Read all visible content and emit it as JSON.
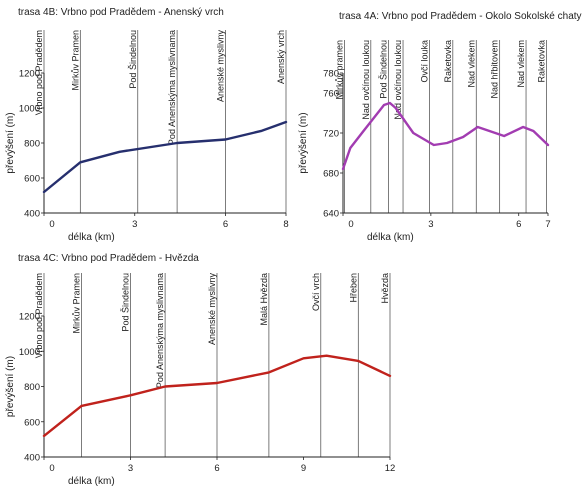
{
  "chart_data": [
    {
      "type": "line",
      "title": "trasa 4B: Vrbno pod Pradědem - Anenský vrch",
      "xlabel": "délka (km)",
      "ylabel": "převýšení (m)",
      "xlim": [
        0,
        8
      ],
      "ylim": [
        400,
        1200
      ],
      "xticks": [
        0,
        3,
        6,
        8
      ],
      "yticks": [
        400,
        600,
        800,
        1000,
        1200
      ],
      "color": "#262f6e",
      "waypoints": [
        {
          "x": 0,
          "label": "Vrbno pod Pradědem"
        },
        {
          "x": 1.2,
          "label": "Mirkův Pramen"
        },
        {
          "x": 3.1,
          "label": "Pod Šindelnou"
        },
        {
          "x": 4.4,
          "label": "Pod Anenskýma myslivnama"
        },
        {
          "x": 6.0,
          "label": "Anenské myslivny"
        },
        {
          "x": 8.0,
          "label": "Anenský vrch"
        }
      ],
      "x": [
        0,
        1.2,
        2.5,
        4.4,
        6.0,
        7.2,
        8.0
      ],
      "y": [
        520,
        690,
        750,
        800,
        820,
        870,
        920
      ]
    },
    {
      "type": "line",
      "title": "trasa 4A: Vrbno pod Pradědem - Okolo Sokolské chaty",
      "xlabel": "délka (km)",
      "ylabel": "převýšení (m)",
      "xlim": [
        0,
        7
      ],
      "ylim": [
        640,
        780
      ],
      "xticks": [
        0,
        3,
        6,
        7
      ],
      "yticks": [
        640,
        680,
        720,
        760,
        780
      ],
      "color": "#a23cb1",
      "waypoints": [
        {
          "x": 0.05,
          "label": "Mirkův pramen"
        },
        {
          "x": 0.95,
          "label": "Nad ovčínou loukou"
        },
        {
          "x": 1.55,
          "label": "Pod Šindelnou"
        },
        {
          "x": 2.05,
          "label": "Nad ovčínou loukou"
        },
        {
          "x": 2.95,
          "label": "Ovčí louka"
        },
        {
          "x": 3.75,
          "label": "Raketovka"
        },
        {
          "x": 4.55,
          "label": "Nad vlekem"
        },
        {
          "x": 5.35,
          "label": "Nad hřbitovem"
        },
        {
          "x": 6.25,
          "label": "Nad vlekem"
        },
        {
          "x": 6.95,
          "label": "Raketovka"
        }
      ],
      "x": [
        0,
        0.25,
        0.7,
        1.4,
        1.6,
        1.8,
        2.4,
        3.1,
        3.55,
        4.1,
        4.6,
        5.5,
        6.15,
        6.5,
        7.0
      ],
      "y": [
        684,
        705,
        722,
        748,
        750,
        745,
        720,
        708,
        710,
        716,
        726,
        717,
        726,
        722,
        708
      ]
    },
    {
      "type": "line",
      "title": "trasa 4C: Vrbno pod Pradědem - Hvězda",
      "xlabel": "délka (km)",
      "ylabel": "převýšení (m)",
      "xlim": [
        0,
        12
      ],
      "ylim": [
        400,
        1200
      ],
      "xticks": [
        0,
        3,
        6,
        9,
        12
      ],
      "yticks": [
        400,
        600,
        800,
        1000,
        1200
      ],
      "color": "#c0221c",
      "waypoints": [
        {
          "x": 0,
          "label": "Vrbno pod Pradědem"
        },
        {
          "x": 1.3,
          "label": "Mirkův Pramen"
        },
        {
          "x": 3.0,
          "label": "Pod Šindelnou"
        },
        {
          "x": 4.2,
          "label": "Pod Anenskýma myslivnama"
        },
        {
          "x": 6.0,
          "label": "Anenské myslivny"
        },
        {
          "x": 7.8,
          "label": "Malá Hvězda"
        },
        {
          "x": 9.6,
          "label": "Ovčí vrch"
        },
        {
          "x": 10.9,
          "label": "Hřeben"
        },
        {
          "x": 12.0,
          "label": "Hvězda"
        }
      ],
      "x": [
        0,
        1.3,
        3.0,
        4.2,
        6.0,
        7.8,
        9.0,
        9.8,
        10.9,
        12.0
      ],
      "y": [
        520,
        690,
        750,
        800,
        820,
        880,
        960,
        975,
        945,
        860
      ]
    }
  ]
}
